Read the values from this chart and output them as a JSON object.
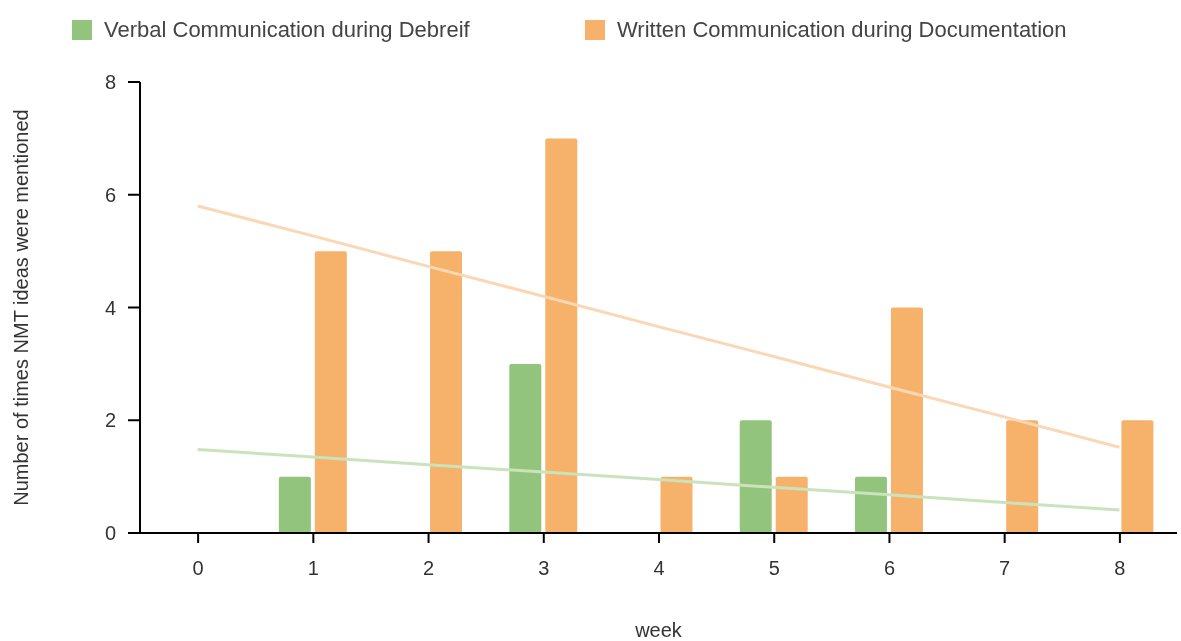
{
  "chart_data": {
    "type": "bar",
    "xlabel": "week",
    "ylabel": "Number of times NMT ideas were mentioned",
    "categories": [
      "0",
      "1",
      "2",
      "3",
      "4",
      "5",
      "6",
      "7",
      "8"
    ],
    "series": [
      {
        "name": "Verbal Communication during Debreif",
        "color": "#93c47d",
        "values": [
          0,
          1,
          0,
          3,
          0,
          2,
          1,
          0,
          0
        ]
      },
      {
        "name": "Written Communication during Documentation",
        "color": "#f6b26b",
        "values": [
          0,
          5,
          5,
          7,
          1,
          1,
          4,
          2,
          2
        ]
      },
      {
        "type": "line",
        "color": "#c9e3bd",
        "values": [
          1.48,
          1.35,
          1.21,
          1.08,
          0.95,
          0.81,
          0.68,
          0.54,
          0.41
        ]
      },
      {
        "type": "line",
        "color": "#fad7b5",
        "values": [
          5.8,
          5.27,
          4.73,
          4.2,
          3.66,
          3.13,
          2.59,
          2.06,
          1.52
        ]
      }
    ],
    "ylim": [
      0,
      8
    ],
    "yticks": [
      0,
      2,
      4,
      6,
      8
    ],
    "legend": "top",
    "grid": false,
    "marker": "none"
  }
}
